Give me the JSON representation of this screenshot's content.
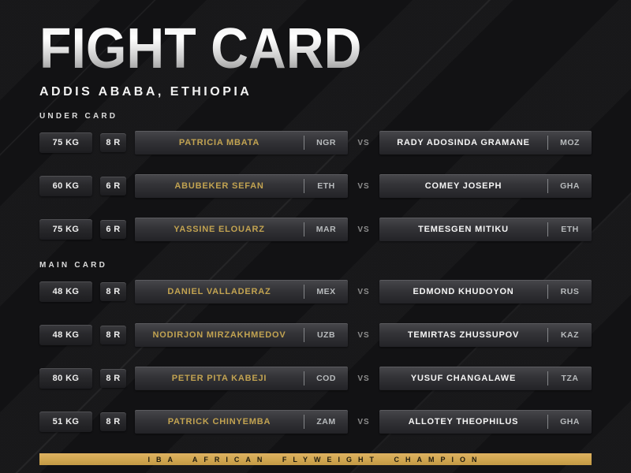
{
  "title": "FIGHT CARD",
  "subtitle": "ADDIS ABABA, ETHIOPIA",
  "vs_label": "VS",
  "colors": {
    "background": "#141416",
    "gold_accent": "#c2a351",
    "banner_gold": "#d0a650",
    "box_dark": "#2b2b2f"
  },
  "sections": [
    {
      "label": "UNDER CARD",
      "fights": [
        {
          "weight": "75 KG",
          "rounds": "8 R",
          "red": {
            "name": "PATRICIA MBATA",
            "country": "NGR"
          },
          "blue": {
            "name": "RADY ADOSINDA GRAMANE",
            "country": "MOZ"
          }
        },
        {
          "weight": "60 KG",
          "rounds": "6 R",
          "red": {
            "name": "ABUBEKER SEFAN",
            "country": "ETH"
          },
          "blue": {
            "name": "COMEY JOSEPH",
            "country": "GHA"
          }
        },
        {
          "weight": "75 KG",
          "rounds": "6 R",
          "red": {
            "name": "YASSINE ELOUARZ",
            "country": "MAR"
          },
          "blue": {
            "name": "TEMESGEN MITIKU",
            "country": "ETH"
          }
        }
      ]
    },
    {
      "label": "MAIN CARD",
      "fights": [
        {
          "weight": "48 KG",
          "rounds": "8 R",
          "red": {
            "name": "DANIEL VALLADERAZ",
            "country": "MEX"
          },
          "blue": {
            "name": "EDMOND KHUDOYON",
            "country": "RUS"
          }
        },
        {
          "weight": "48 KG",
          "rounds": "8 R",
          "red": {
            "name": "NODIRJON MIRZAKHMEDOV",
            "country": "UZB"
          },
          "blue": {
            "name": "TEMIRTAS ZHUSSUPOV",
            "country": "KAZ"
          }
        },
        {
          "weight": "80 KG",
          "rounds": "8 R",
          "red": {
            "name": "PETER PITA KABEJI",
            "country": "COD"
          },
          "blue": {
            "name": "YUSUF CHANGALAWE",
            "country": "TZA"
          }
        },
        {
          "weight": "51 KG",
          "rounds": "8 R",
          "red": {
            "name": "PATRICK CHINYEMBA",
            "country": "ZAM"
          },
          "blue": {
            "name": "ALLOTEY THEOPHILUS",
            "country": "GHA"
          }
        }
      ]
    }
  ],
  "footer": {
    "banner": "IBA AFRICAN FLYWEIGHT CHAMPION"
  }
}
